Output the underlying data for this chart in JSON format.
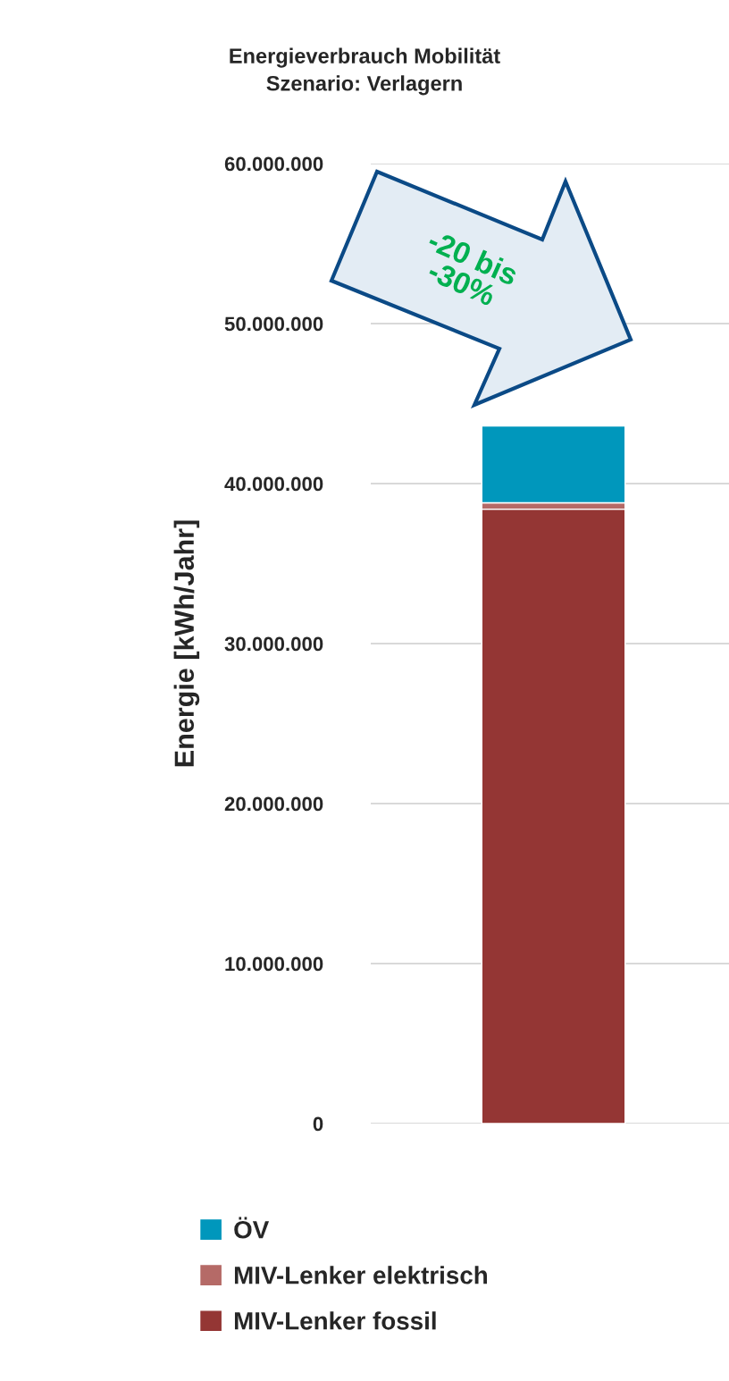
{
  "chart_data": {
    "type": "bar",
    "title": "Energieverbrauch Mobilität\nSzenario: Verlagern",
    "ylabel": "Energie [kWh/Jahr]",
    "categories": [
      null
    ],
    "stacked": true,
    "series": [
      {
        "name": "MIV-Lenker fossil",
        "color": "#943634",
        "values": [
          38400000
        ]
      },
      {
        "name": "MIV-Lenker elektrisch",
        "color": "#b56a67",
        "values": [
          400000
        ]
      },
      {
        "name": "ÖV",
        "color": "#0097bc",
        "values": [
          4800000
        ]
      }
    ],
    "ylim": [
      0,
      60000000
    ],
    "yticks": [
      {
        "value": 0,
        "label": "0"
      },
      {
        "value": 10000000,
        "label": "10.000.000"
      },
      {
        "value": 20000000,
        "label": "20.000.000"
      },
      {
        "value": 30000000,
        "label": "30.000.000"
      },
      {
        "value": 40000000,
        "label": "40.000.000"
      },
      {
        "value": 50000000,
        "label": "50.000.000"
      },
      {
        "value": 60000000,
        "label": "60.000.000"
      }
    ],
    "grid": "y",
    "legend": "bottom",
    "annotations": [
      "-20 bis\n-30%"
    ]
  }
}
